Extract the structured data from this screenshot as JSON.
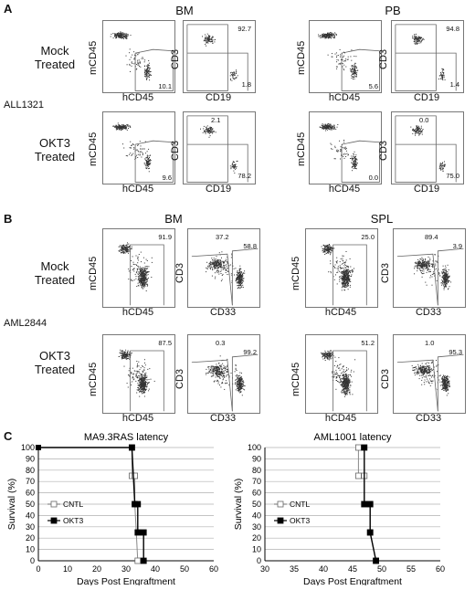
{
  "panel_letters": {
    "a": "A",
    "b": "B",
    "c": "C"
  },
  "sample_labels": {
    "all": "ALL1321",
    "aml": "AML2844"
  },
  "tissue_headers": {
    "a_left": "BM",
    "a_right": "PB",
    "b_left": "BM",
    "b_right": "SPL"
  },
  "treatments": {
    "mock": [
      "Mock",
      "Treated"
    ],
    "okt3": [
      "OKT3",
      "Treated"
    ]
  },
  "axis_labels": {
    "mcd45": "mCD45",
    "hcd45": "hCD45",
    "cd3": "CD3",
    "cd19": "CD19",
    "cd33": "CD33"
  },
  "flow_values": {
    "a_mock_bm_hcd45": "10.1",
    "a_mock_bm_cd3": "92.7",
    "a_mock_bm_cd19": "1.8",
    "a_mock_pb_hcd45": "5.6",
    "a_mock_pb_cd3": "94.8",
    "a_mock_pb_cd19": "1.4",
    "a_okt3_bm_hcd45": "9.6",
    "a_okt3_bm_cd3": "2.1",
    "a_okt3_bm_cd19": "78.2",
    "a_okt3_pb_hcd45": "0.0",
    "a_okt3_pb_cd3": "0.0",
    "a_okt3_pb_cd19": "75.0",
    "b_mock_bm_hcd45": "91.9",
    "b_mock_bm_cd3": "37.2",
    "b_mock_bm_cd33": "58.8",
    "b_mock_spl_hcd45": "25.0",
    "b_mock_spl_cd3": "89.4",
    "b_mock_spl_cd33": "3.9",
    "b_okt3_bm_hcd45": "87.5",
    "b_okt3_bm_cd3": "0.3",
    "b_okt3_bm_cd33": "99.2",
    "b_okt3_spl_hcd45": "51.2",
    "b_okt3_spl_cd3": "1.0",
    "b_okt3_spl_cd33": "95.3"
  },
  "colors": {
    "line": "#000000",
    "grid": "#b0b0b0",
    "dots": "#333333"
  },
  "chart_data": [
    {
      "type": "line",
      "title": "MA9.3RAS latency",
      "xlabel": "Days Post Engraftment",
      "ylabel": "Survival (%)",
      "xlim": [
        0,
        60
      ],
      "ylim": [
        0,
        100
      ],
      "xticks": [
        "0",
        "10",
        "20",
        "30",
        "40",
        "50",
        "60"
      ],
      "yticks": [
        "0",
        "10",
        "20",
        "30",
        "40",
        "50",
        "60",
        "70",
        "80",
        "90",
        "100"
      ],
      "grid": true,
      "legend": "left",
      "series": [
        {
          "name": "CNTL",
          "marker": "open-square",
          "x": [
            0,
            32,
            32,
            33,
            33,
            34
          ],
          "y": [
            100,
            100,
            75,
            75,
            50,
            0
          ]
        },
        {
          "name": "OKT3",
          "marker": "filled-square",
          "x": [
            0,
            32,
            33,
            34,
            34,
            36,
            36
          ],
          "y": [
            100,
            100,
            50,
            50,
            25,
            25,
            0
          ]
        }
      ]
    },
    {
      "type": "line",
      "title": "AML1001 latency",
      "xlabel": "Days Post Engraftment",
      "ylabel": "Survival (%)",
      "xlim": [
        30,
        60
      ],
      "ylim": [
        0,
        100
      ],
      "xticks": [
        "30",
        "35",
        "40",
        "45",
        "50",
        "55",
        "60"
      ],
      "yticks": [
        "0",
        "10",
        "20",
        "30",
        "40",
        "50",
        "60",
        "70",
        "80",
        "90",
        "100"
      ],
      "grid": true,
      "legend": "left",
      "series": [
        {
          "name": "CNTL",
          "marker": "open-square",
          "x": [
            46,
            46,
            47,
            47,
            48,
            48,
            49
          ],
          "y": [
            100,
            75,
            75,
            50,
            50,
            25,
            0
          ]
        },
        {
          "name": "OKT3",
          "marker": "filled-square",
          "x": [
            47,
            47,
            48,
            48,
            49
          ],
          "y": [
            100,
            50,
            50,
            25,
            0
          ]
        }
      ]
    }
  ]
}
